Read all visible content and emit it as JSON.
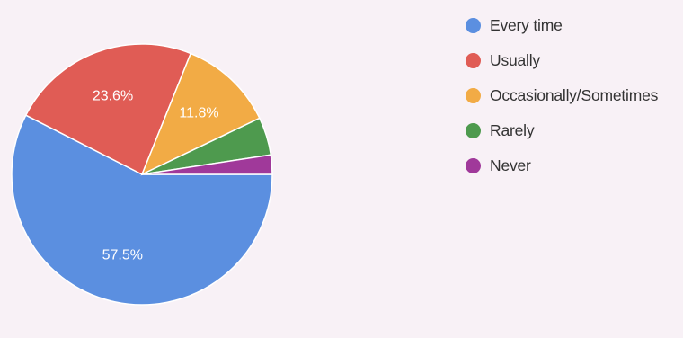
{
  "chart_data": {
    "type": "pie",
    "categories": [
      "Every time",
      "Usually",
      "Occasionally/Sometimes",
      "Rarely",
      "Never"
    ],
    "values": [
      57.5,
      23.6,
      11.8,
      4.7,
      2.4
    ],
    "data_labels": [
      "57.5%",
      "23.6%",
      "11.8%",
      "",
      ""
    ],
    "colors": [
      "#5b8fe0",
      "#e05c55",
      "#f2ab45",
      "#4e9a4e",
      "#a0399a"
    ],
    "legend_position": "right"
  }
}
